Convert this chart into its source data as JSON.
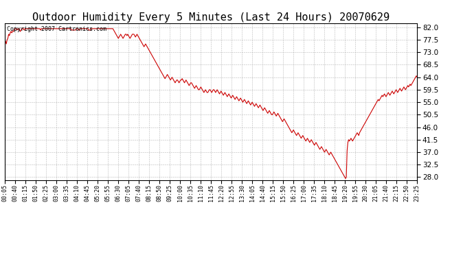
{
  "title": "Outdoor Humidity Every 5 Minutes (Last 24 Hours) 20070629",
  "copyright_text": "Copyright 2007 Cartronics.com",
  "line_color": "#cc0000",
  "background_color": "#ffffff",
  "grid_color": "#b0b0b0",
  "ylim": [
    27.0,
    83.5
  ],
  "yticks": [
    28.0,
    32.5,
    37.0,
    41.5,
    46.0,
    50.5,
    55.0,
    59.5,
    64.0,
    68.5,
    73.0,
    77.5,
    82.0
  ],
  "xlabel_fontsize": 6,
  "ylabel_fontsize": 7.5,
  "title_fontsize": 11,
  "copyright_fontsize": 6,
  "xtick_labels": [
    "00:05",
    "00:40",
    "01:15",
    "01:50",
    "02:25",
    "03:00",
    "03:35",
    "04:10",
    "04:45",
    "05:20",
    "05:55",
    "06:30",
    "07:05",
    "07:40",
    "08:15",
    "08:50",
    "09:25",
    "10:00",
    "10:35",
    "11:10",
    "11:45",
    "12:20",
    "12:55",
    "13:30",
    "14:05",
    "14:40",
    "15:15",
    "15:50",
    "16:25",
    "17:00",
    "17:35",
    "18:10",
    "18:45",
    "19:20",
    "19:55",
    "20:30",
    "21:05",
    "21:40",
    "22:15",
    "22:50",
    "23:25"
  ],
  "humidity_values": [
    76.5,
    77.0,
    76.0,
    77.5,
    78.0,
    79.5,
    79.0,
    80.0,
    80.5,
    80.0,
    80.5,
    80.5,
    81.0,
    81.5,
    81.5,
    81.5,
    81.0,
    81.5,
    81.5,
    81.0,
    80.5,
    81.0,
    81.5,
    81.5,
    81.5,
    81.0,
    81.5,
    81.5,
    81.5,
    81.5,
    81.5,
    81.5,
    81.5,
    81.5,
    81.5,
    81.5,
    81.5,
    81.5,
    81.5,
    81.5,
    81.5,
    81.5,
    81.5,
    81.5,
    81.5,
    81.5,
    81.0,
    81.5,
    81.5,
    81.5,
    81.5,
    81.5,
    81.5,
    81.5,
    81.5,
    81.5,
    81.5,
    81.5,
    81.5,
    81.5,
    81.5,
    81.5,
    81.5,
    81.5,
    81.5,
    81.5,
    81.5,
    81.5,
    81.5,
    81.5,
    81.5,
    81.5,
    81.5,
    81.5,
    81.5,
    81.5,
    81.5,
    81.5,
    81.5,
    81.5,
    81.5,
    81.5,
    81.5,
    81.5,
    81.5,
    81.5,
    81.0,
    81.0,
    81.0,
    81.0,
    81.0,
    81.0,
    81.5,
    81.5,
    81.5,
    81.0,
    81.0,
    81.5,
    81.5,
    81.5,
    81.5,
    81.5,
    81.5,
    81.5,
    81.5,
    81.5,
    81.5,
    81.5,
    81.0,
    81.0,
    81.0,
    81.5,
    81.5,
    81.5,
    81.5,
    81.5,
    81.5,
    81.5,
    81.5,
    81.5,
    81.5,
    81.5,
    81.5,
    81.5,
    81.5,
    81.5,
    81.5,
    81.5,
    81.5,
    81.5,
    81.5,
    81.5,
    81.5,
    81.5,
    81.5,
    81.5,
    81.5,
    81.5,
    81.5,
    81.5,
    81.0,
    80.5,
    80.0,
    79.5,
    79.0,
    78.5,
    78.0,
    78.5,
    79.0,
    79.5,
    79.0,
    78.5,
    78.0,
    78.5,
    79.0,
    79.5,
    79.5,
    79.0,
    79.5,
    79.0,
    78.5,
    78.0,
    78.5,
    79.0,
    79.5,
    79.5,
    79.5,
    79.0,
    78.5,
    79.0,
    79.5,
    79.0,
    78.5,
    78.0,
    77.5,
    77.0,
    76.5,
    76.0,
    75.5,
    75.0,
    75.5,
    76.0,
    75.5,
    75.0,
    74.5,
    74.0,
    73.5,
    73.0,
    72.5,
    72.0,
    71.5,
    71.0,
    70.5,
    70.0,
    69.5,
    69.0,
    68.5,
    68.0,
    67.5,
    67.0,
    66.5,
    66.0,
    65.5,
    65.0,
    64.5,
    64.0,
    63.5,
    64.0,
    64.5,
    65.0,
    64.5,
    64.0,
    63.5,
    63.0,
    63.5,
    64.0,
    63.5,
    63.0,
    62.5,
    62.0,
    62.5,
    63.0,
    63.0,
    62.5,
    62.0,
    62.5,
    63.0,
    63.0,
    63.5,
    63.0,
    62.5,
    62.0,
    62.5,
    63.0,
    62.5,
    62.0,
    61.5,
    61.0,
    61.5,
    62.0,
    62.0,
    61.5,
    61.0,
    60.5,
    60.0,
    60.5,
    61.0,
    60.5,
    60.0,
    59.5,
    59.5,
    60.0,
    60.5,
    60.0,
    59.5,
    59.0,
    58.5,
    59.0,
    59.5,
    59.0,
    58.5,
    58.5,
    59.0,
    59.5,
    59.5,
    59.0,
    58.5,
    59.0,
    59.5,
    59.5,
    59.0,
    58.5,
    59.0,
    59.5,
    59.0,
    58.5,
    58.0,
    58.5,
    59.0,
    58.5,
    58.0,
    57.5,
    58.0,
    58.5,
    58.0,
    57.5,
    57.0,
    57.5,
    58.0,
    57.5,
    57.0,
    56.5,
    57.0,
    57.5,
    57.0,
    56.5,
    56.0,
    56.5,
    57.0,
    56.5,
    56.0,
    55.5,
    56.0,
    56.5,
    56.0,
    55.5,
    55.0,
    55.5,
    56.0,
    55.5,
    55.0,
    54.5,
    55.0,
    55.5,
    55.0,
    54.5,
    54.0,
    54.5,
    55.0,
    54.5,
    54.0,
    53.5,
    54.0,
    54.5,
    54.0,
    53.5,
    53.0,
    53.5,
    54.0,
    53.5,
    53.0,
    52.5,
    52.0,
    52.5,
    53.0,
    52.5,
    52.0,
    51.5,
    51.0,
    51.5,
    52.0,
    51.5,
    51.0,
    50.5,
    50.5,
    51.0,
    51.5,
    51.0,
    50.5,
    50.0,
    50.5,
    51.0,
    50.5,
    50.0,
    49.5,
    49.0,
    48.5,
    48.0,
    48.5,
    49.0,
    48.5,
    48.0,
    47.5,
    47.0,
    46.5,
    46.0,
    45.5,
    45.0,
    44.5,
    44.0,
    44.5,
    45.0,
    44.5,
    44.0,
    43.5,
    43.0,
    43.5,
    44.0,
    43.5,
    43.0,
    42.5,
    42.0,
    42.5,
    43.0,
    42.5,
    42.0,
    41.5,
    41.0,
    41.5,
    42.0,
    41.5,
    41.0,
    40.5,
    41.0,
    41.5,
    41.0,
    40.5,
    40.0,
    39.5,
    40.0,
    40.5,
    40.0,
    39.5,
    39.0,
    38.5,
    38.0,
    38.5,
    39.0,
    38.5,
    38.0,
    37.5,
    37.0,
    37.5,
    38.0,
    37.5,
    37.0,
    36.5,
    36.0,
    36.5,
    37.0,
    36.5,
    36.0,
    35.5,
    35.0,
    34.5,
    34.0,
    33.5,
    33.0,
    32.5,
    32.0,
    31.5,
    31.0,
    30.5,
    30.0,
    29.5,
    29.0,
    28.5,
    28.0,
    27.5,
    28.0,
    37.5,
    40.5,
    41.5,
    41.0,
    41.5,
    42.0,
    41.5,
    41.0,
    41.5,
    42.0,
    42.5,
    43.0,
    43.5,
    44.0,
    43.5,
    43.0,
    44.0,
    44.5,
    45.0,
    45.5,
    46.0,
    46.5,
    47.0,
    47.5,
    48.0,
    48.5,
    49.0,
    49.5,
    50.0,
    50.5,
    51.0,
    51.5,
    52.0,
    52.5,
    53.0,
    53.5,
    54.0,
    54.5,
    55.0,
    55.5,
    56.0,
    55.5,
    56.0,
    56.5,
    57.0,
    57.5,
    57.0,
    57.5,
    58.0,
    57.5,
    57.0,
    57.5,
    58.0,
    58.5,
    58.0,
    57.5,
    58.0,
    58.5,
    59.0,
    58.5,
    58.0,
    58.5,
    59.0,
    59.5,
    59.0,
    58.5,
    59.0,
    59.5,
    60.0,
    59.5,
    59.0,
    59.5,
    60.0,
    60.5,
    60.0,
    59.5,
    60.0,
    60.5,
    61.0,
    60.5,
    61.0,
    61.5,
    61.0,
    61.5,
    62.0,
    62.5,
    63.0,
    63.5,
    64.0,
    64.5,
    64.0
  ]
}
